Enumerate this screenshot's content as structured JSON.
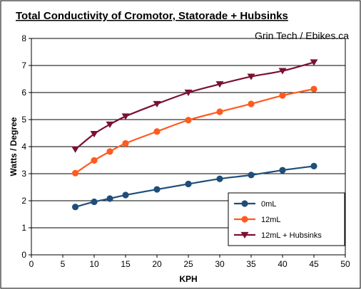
{
  "chart_data": {
    "type": "line",
    "title": "Total Conductivity of Cromotor, Statorade + Hubsinks",
    "subtitle": "Grin Tech / Ebikes.ca",
    "xlabel": "KPH",
    "ylabel": "Watts / Degree",
    "xlim": [
      0,
      50
    ],
    "ylim": [
      0,
      8
    ],
    "xticks": [
      0,
      5,
      10,
      15,
      20,
      25,
      30,
      35,
      40,
      45,
      50
    ],
    "yticks": [
      0,
      1,
      2,
      3,
      4,
      5,
      6,
      7,
      8
    ],
    "grid": "horizontal",
    "legend_position": "bottom-right",
    "series": [
      {
        "name": "0mL",
        "color": "#1f4e79",
        "marker": "circle",
        "x": [
          7,
          10,
          12.5,
          15,
          20,
          25,
          30,
          35,
          40,
          45
        ],
        "y": [
          1.77,
          1.96,
          2.08,
          2.21,
          2.42,
          2.62,
          2.81,
          2.95,
          3.13,
          3.28
        ]
      },
      {
        "name": "12mL",
        "color": "#ff5a1f",
        "marker": "circle",
        "x": [
          7,
          10,
          12.5,
          15,
          20,
          25,
          30,
          35,
          40,
          45
        ],
        "y": [
          3.02,
          3.49,
          3.82,
          4.12,
          4.56,
          4.98,
          5.29,
          5.58,
          5.89,
          6.13
        ]
      },
      {
        "name": "12mL + Hubsinks",
        "color": "#7b1030",
        "marker": "triangle-down",
        "x": [
          7,
          10,
          12.5,
          15,
          20,
          25,
          30,
          35,
          40,
          45
        ],
        "y": [
          3.9,
          4.47,
          4.82,
          5.12,
          5.58,
          6.0,
          6.31,
          6.59,
          6.8,
          7.12
        ]
      }
    ]
  }
}
